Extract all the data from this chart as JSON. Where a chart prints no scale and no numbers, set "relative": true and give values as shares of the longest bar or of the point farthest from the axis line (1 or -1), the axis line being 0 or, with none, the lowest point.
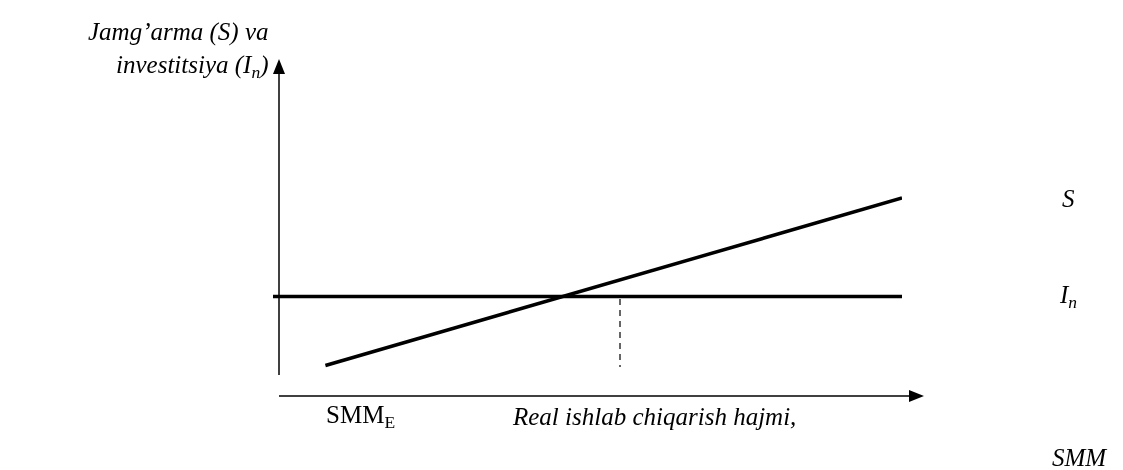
{
  "chart_data": {
    "type": "line",
    "relative": true,
    "ylabel": "Jamg’arma (S) va\ninvestitsiya (I$_{n}$)",
    "xlabel": "Real ishlab chiqarish hajmi,\nSMM",
    "annotations": [
      "SMM$_{E}$"
    ],
    "categories": [
      null,
      null,
      null,
      null,
      null,
      null,
      null,
      null,
      null,
      null,
      null,
      null,
      null,
      null,
      null,
      null,
      null,
      null,
      null,
      null,
      null,
      null,
      null,
      null,
      null
    ],
    "series": [
      {
        "name": "S",
        "color": "#000000",
        "values": [
          null,
          null,
          0.15,
          null,
          null,
          null,
          null,
          null,
          null,
          null,
          null,
          null,
          null,
          null,
          null,
          null,
          null,
          null,
          null,
          null,
          null,
          null,
          null,
          null,
          1
        ]
      },
      {
        "name": "I$_{n}$",
        "color": "#000000",
        "values": [
          0.5,
          null,
          null,
          null,
          null,
          null,
          null,
          null,
          null,
          null,
          null,
          null,
          null,
          null,
          null,
          null,
          null,
          null,
          null,
          null,
          null,
          null,
          null,
          null,
          0.5
        ]
      }
    ],
    "line_style": "solid",
    "marker": "none",
    "grid": false,
    "legend": false
  }
}
